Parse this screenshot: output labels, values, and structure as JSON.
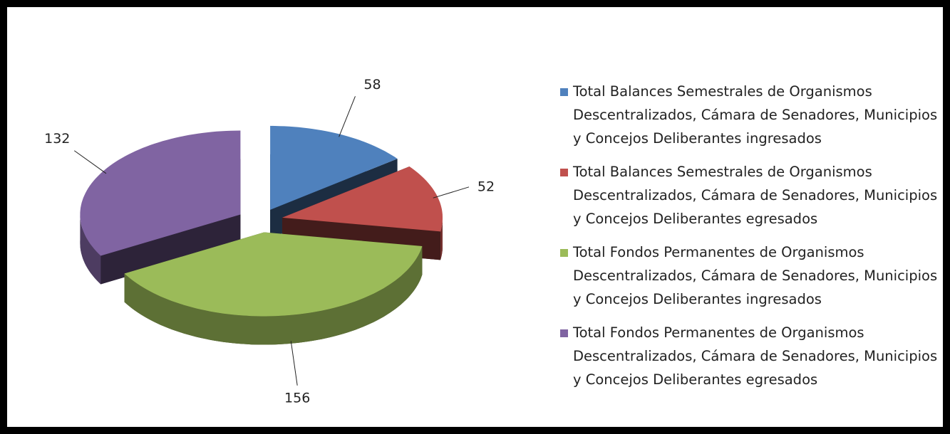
{
  "chart_data": {
    "type": "pie",
    "categories": [
      "Total Balances Semestrales de Organismos Descentralizados, Cámara de Senadores, Municipios y Concejos Deliberantes ingresados",
      "Total Balances Semestrales de Organismos Descentralizados, Cámara de Senadores, Municipios y Concejos Deliberantes egresados",
      "Total Fondos Permanentes de Organismos Descentralizados, Cámara de Senadores, Municipios y Concejos Deliberantes ingresados",
      "Total Fondos Permanentes de Organismos Descentralizados, Cámara de Senadores, Municipios y Concejos Deliberantes egresados"
    ],
    "values": [
      58,
      52,
      156,
      132
    ],
    "colors": [
      "#4f81bd",
      "#c0504d",
      "#9bbb59",
      "#8064a2"
    ],
    "legend": "right"
  }
}
